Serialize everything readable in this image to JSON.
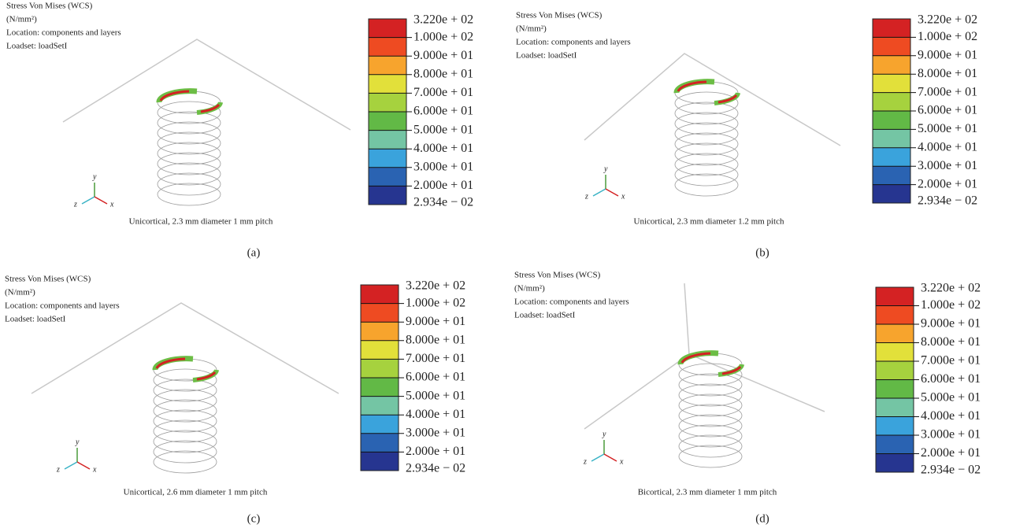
{
  "panels": [
    {
      "header": [
        "Stress Von Mises (WCS)",
        "(N/mm²)",
        "Location: components and layers",
        "Loadset: loadSetI"
      ],
      "legend": [
        "3.220e + 02",
        "1.000e + 02",
        "9.000e + 01",
        "8.000e + 01",
        "7.000e + 01",
        "6.000e + 01",
        "5.000e + 01",
        "4.000e + 01",
        "3.000e + 01",
        "2.000e + 01",
        "2.934e − 02"
      ],
      "axes": [
        "y",
        "z",
        "x"
      ],
      "caption": "Unicortical, 2.3 mm diameter 1 mm pitch",
      "letter": "(a)"
    },
    {
      "header": [
        "Stress Von Mises (WCS)",
        "(N/mm²)",
        "Location: components and layers",
        "Loadset: loadSetI"
      ],
      "legend": [
        "3.220e + 02",
        "1.000e + 02",
        "9.000e + 01",
        "8.000e + 01",
        "7.000e + 01",
        "6.000e + 01",
        "5.000e + 01",
        "4.000e + 01",
        "3.000e + 01",
        "2.000e + 01",
        "2.934e − 02"
      ],
      "axes": [
        "y",
        "z",
        "x"
      ],
      "caption": "Unicortical, 2.3 mm diameter 1.2 mm pitch",
      "letter": "(b)"
    },
    {
      "header": [
        "Stress Von Mises (WCS)",
        "(N/mm²)",
        "Location: components and layers",
        "Loadset: loadSetI"
      ],
      "legend": [
        "3.220e + 02",
        "1.000e + 02",
        "9.000e + 01",
        "8.000e + 01",
        "7.000e + 01",
        "6.000e + 01",
        "5.000e + 01",
        "4.000e + 01",
        "3.000e + 01",
        "2.000e + 01",
        "2.934e − 02"
      ],
      "axes": [
        "y",
        "z",
        "x"
      ],
      "caption": "Unicortical, 2.6 mm diameter 1 mm pitch",
      "letter": "(c)"
    },
    {
      "header": [
        "Stress Von Mises (WCS)",
        "(N/mm²)",
        "Location: components and layers",
        "Loadset: loadSetI"
      ],
      "legend": [
        "3.220e + 02",
        "1.000e + 02",
        "9.000e + 01",
        "8.000e + 01",
        "7.000e + 01",
        "6.000e + 01",
        "5.000e + 01",
        "4.000e + 01",
        "3.000e + 01",
        "2.000e + 01",
        "2.934e − 02"
      ],
      "axes": [
        "y",
        "z",
        "x"
      ],
      "caption": "Bicortical, 2.3 mm diameter 1 mm pitch",
      "letter": "(d)"
    }
  ]
}
